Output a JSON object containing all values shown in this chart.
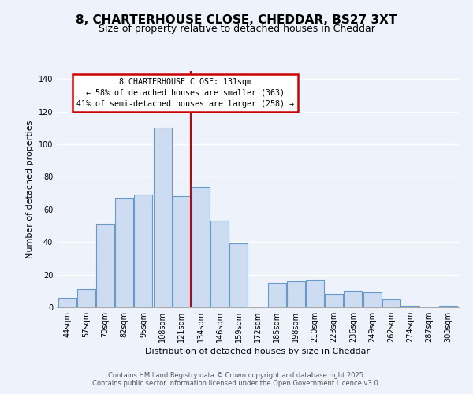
{
  "title": "8, CHARTERHOUSE CLOSE, CHEDDAR, BS27 3XT",
  "subtitle": "Size of property relative to detached houses in Cheddar",
  "xlabel": "Distribution of detached houses by size in Cheddar",
  "ylabel": "Number of detached properties",
  "bar_labels": [
    "44sqm",
    "57sqm",
    "70sqm",
    "82sqm",
    "95sqm",
    "108sqm",
    "121sqm",
    "134sqm",
    "146sqm",
    "159sqm",
    "172sqm",
    "185sqm",
    "198sqm",
    "210sqm",
    "223sqm",
    "236sqm",
    "249sqm",
    "262sqm",
    "274sqm",
    "287sqm",
    "300sqm"
  ],
  "bar_values": [
    6,
    11,
    51,
    67,
    69,
    110,
    68,
    74,
    53,
    39,
    0,
    15,
    16,
    17,
    8,
    10,
    9,
    5,
    1,
    0,
    1
  ],
  "bar_color": "#cddcf0",
  "bar_edge_color": "#6699cc",
  "vline_color": "#cc0000",
  "annotation_title": "8 CHARTERHOUSE CLOSE: 131sqm",
  "annotation_line2": "← 58% of detached houses are smaller (363)",
  "annotation_line3": "41% of semi-detached houses are larger (258) →",
  "annotation_box_color": "#ffffff",
  "annotation_box_edge": "#cc0000",
  "ylim": [
    0,
    145
  ],
  "footer1": "Contains HM Land Registry data © Crown copyright and database right 2025.",
  "footer2": "Contains public sector information licensed under the Open Government Licence v3.0.",
  "bg_color": "#eef3fb",
  "grid_color": "#ffffff",
  "title_fontsize": 11,
  "subtitle_fontsize": 9,
  "label_fontsize": 8,
  "tick_fontsize": 7,
  "footer_fontsize": 6,
  "vline_x_index": 7
}
